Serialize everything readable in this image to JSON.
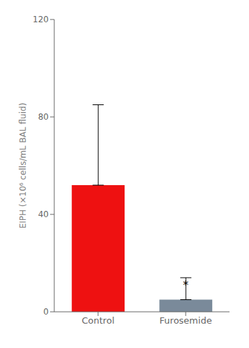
{
  "chart_data": {
    "type": "bar",
    "categories": [
      "Control",
      "Furosemide"
    ],
    "values": [
      52,
      5
    ],
    "error_upper": [
      33,
      9
    ],
    "colors": [
      "#ee1111",
      "#7a8a9a"
    ],
    "ylabel": "EIPH (×10⁶ cells/mL BAL fluid)",
    "ylim": [
      0,
      120
    ],
    "yticks": [
      0,
      40,
      80,
      120
    ],
    "annotations": [
      {
        "text": "*",
        "category": "Furosemide",
        "y": 8
      }
    ]
  }
}
